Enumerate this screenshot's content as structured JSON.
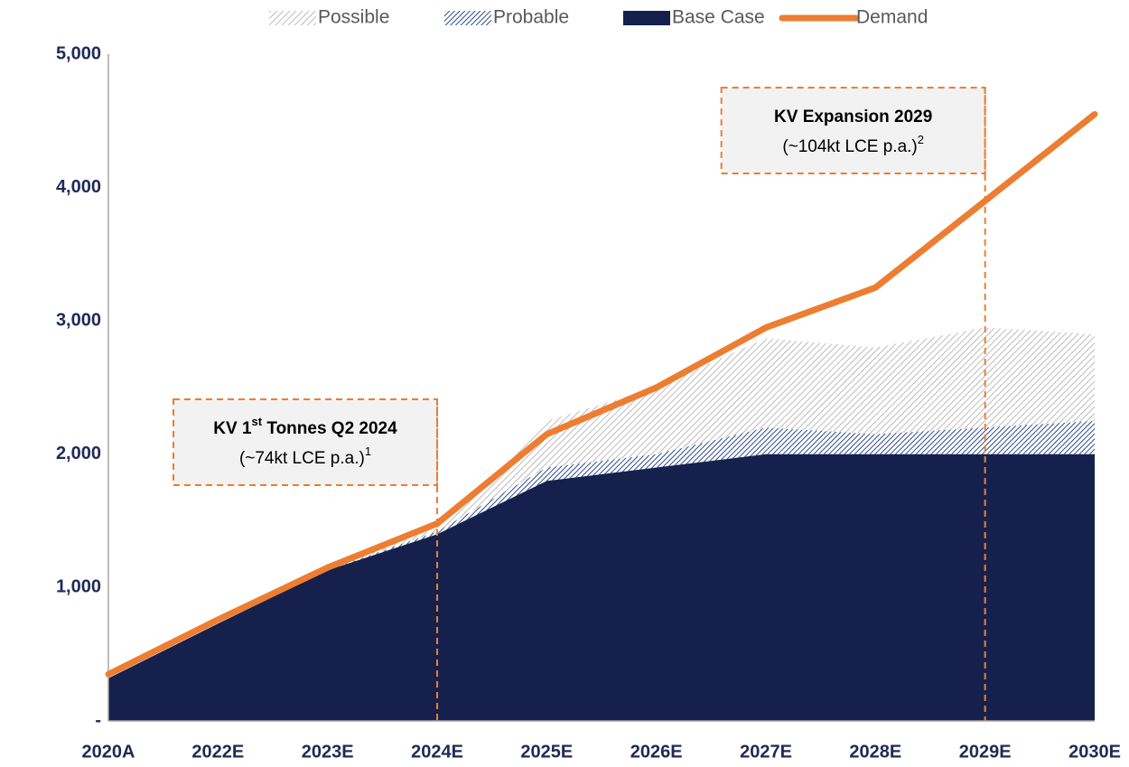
{
  "chart_data": {
    "type": "stacked_area",
    "categories": [
      "2020A",
      "2022E",
      "2023E",
      "2024E",
      "2025E",
      "2026E",
      "2027E",
      "2028E",
      "2029E",
      "2030E"
    ],
    "series": [
      {
        "name": "Base Case",
        "color": "#15214c",
        "hatch": false,
        "values": [
          320,
          730,
          1130,
          1400,
          1800,
          1900,
          2000,
          2000,
          2000,
          2000
        ]
      },
      {
        "name": "Probable",
        "color": "#2e4a8f",
        "hatch": true,
        "values": [
          0,
          0,
          0,
          20,
          100,
          100,
          200,
          150,
          200,
          250
        ]
      },
      {
        "name": "Possible",
        "color": "#a6a6a6",
        "hatch": true,
        "values": [
          0,
          0,
          0,
          30,
          350,
          500,
          670,
          650,
          750,
          650
        ]
      }
    ],
    "line_series": {
      "name": "Demand",
      "color": "#ed7d31",
      "values": [
        350,
        760,
        1150,
        1480,
        2150,
        2500,
        2950,
        3250,
        3900,
        4550
      ]
    },
    "ylim": [
      0,
      5000
    ],
    "yticks": [
      {
        "value": 0,
        "label": "-"
      },
      {
        "value": 1000,
        "label": "1,000"
      },
      {
        "value": 2000,
        "label": "2,000"
      },
      {
        "value": 3000,
        "label": "3,000"
      },
      {
        "value": 4000,
        "label": "4,000"
      },
      {
        "value": 5000,
        "label": "5,000"
      }
    ],
    "legend_order": [
      "Possible",
      "Probable",
      "Base Case",
      "Demand"
    ],
    "legend": "top",
    "annotations": [
      {
        "title": "KV 1",
        "title_sup": "st",
        "title_rest": " Tonnes Q2 2024",
        "note": "(~74kt LCE p.a.)",
        "note_sup": "1",
        "at": "2024E"
      },
      {
        "title": "KV Expansion 2029",
        "note": "(~104kt LCE p.a.)",
        "note_sup": "2",
        "at": "2029E"
      }
    ]
  }
}
